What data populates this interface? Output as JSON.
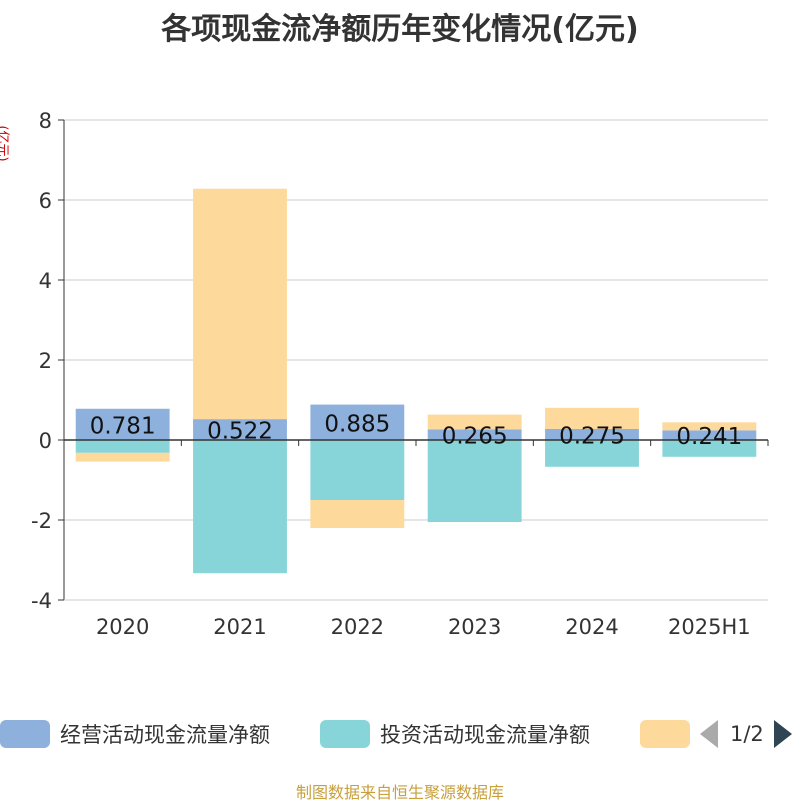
{
  "chart_data": {
    "type": "bar",
    "stacked": true,
    "title": "各项现金流净额历年变化情况(亿元)",
    "ylabel": "(亿元)",
    "categories": [
      "2020",
      "2021",
      "2022",
      "2023",
      "2024",
      "2025H1"
    ],
    "ylim": [
      -4,
      8
    ],
    "yticks": [
      -4,
      -2,
      0,
      2,
      4,
      6,
      8
    ],
    "grid": true,
    "series": [
      {
        "name": "经营活动现金流量净额",
        "color": "#8eb0dc",
        "values": [
          0.781,
          0.522,
          0.885,
          0.265,
          0.275,
          0.241
        ],
        "labels": [
          "0.781",
          "0.522",
          "0.885",
          "0.265",
          "0.275",
          "0.241"
        ]
      },
      {
        "name": "投资活动现金流量净额",
        "color": "#87d5d8",
        "values": [
          -0.32,
          -3.33,
          -1.5,
          -2.05,
          -0.67,
          -0.42
        ]
      },
      {
        "name": "",
        "color": "#fdd99b",
        "values": [
          -0.22,
          5.76,
          -0.7,
          0.37,
          0.53,
          0.2
        ]
      }
    ]
  },
  "legend": {
    "page": "1/2"
  },
  "source": "制图数据来自恒生聚源数据库"
}
